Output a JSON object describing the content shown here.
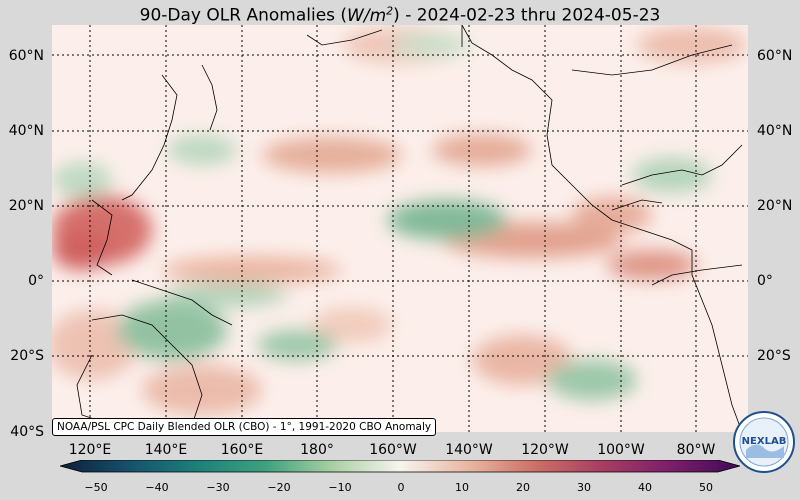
{
  "title": {
    "prefix": "90-Day OLR Anomalies (",
    "unit_var": "W/m",
    "unit_exp": "2",
    "suffix": ") - 2024-02-23 thru 2024-05-23"
  },
  "lat_labels": [
    "60°N",
    "40°N",
    "20°N",
    "0°",
    "20°S",
    "40°S"
  ],
  "lon_labels": [
    "120°E",
    "140°E",
    "160°E",
    "180°",
    "160°W",
    "140°W",
    "120°W",
    "100°W",
    "80°W"
  ],
  "source_note": "NOAA/PSL CPC Daily Blended OLR (CBO) - 1°, 1991-2020 CBO Anomaly",
  "colorbar": {
    "ticks": [
      "−50",
      "−40",
      "−30",
      "−20",
      "−10",
      "0",
      "10",
      "20",
      "30",
      "40",
      "50"
    ],
    "min": -50,
    "max": 50,
    "colors": [
      "#0d1f3c",
      "#17506a",
      "#1c7f7a",
      "#3ea07f",
      "#a8cfa3",
      "#f7f4ef",
      "#e8b7a2",
      "#cc6f67",
      "#a53d62",
      "#7a1e6a",
      "#3f0a55"
    ]
  },
  "logo": {
    "text": "NEXLAB",
    "ring_text": "NOAA PHYSICAL SCIENCES LABORATORY"
  },
  "colors": {
    "background": "#d9d9d9",
    "positive": "#d47a6f",
    "negative": "#5ea67e",
    "neutral": "#fcefeb"
  }
}
